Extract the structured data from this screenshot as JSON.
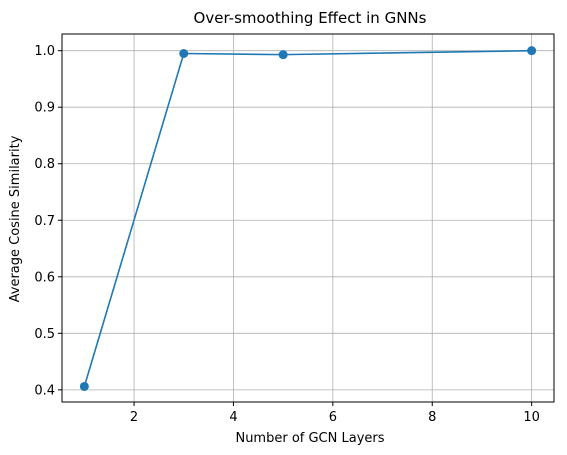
{
  "chart_data": {
    "type": "line",
    "title": "Over-smoothing Effect in GNNs",
    "xlabel": "Number of GCN Layers",
    "ylabel": "Average Cosine Similarity",
    "x": [
      1,
      3,
      5,
      10
    ],
    "series": [
      {
        "values": [
          0.406,
          0.995,
          0.993,
          1.0
        ],
        "color": "#1f77b4"
      }
    ],
    "xlim": [
      0.55,
      10.45
    ],
    "ylim": [
      0.3785,
      1.0295
    ],
    "xticks": [
      2,
      4,
      6,
      8,
      10
    ],
    "xtick_labels": [
      "2",
      "4",
      "6",
      "8",
      "10"
    ],
    "yticks": [
      0.4,
      0.5,
      0.6,
      0.7,
      0.8,
      0.9,
      1.0
    ],
    "ytick_labels": [
      "0.4",
      "0.5",
      "0.6",
      "0.7",
      "0.8",
      "0.9",
      "1.0"
    ],
    "grid": true,
    "marker": "circle"
  }
}
